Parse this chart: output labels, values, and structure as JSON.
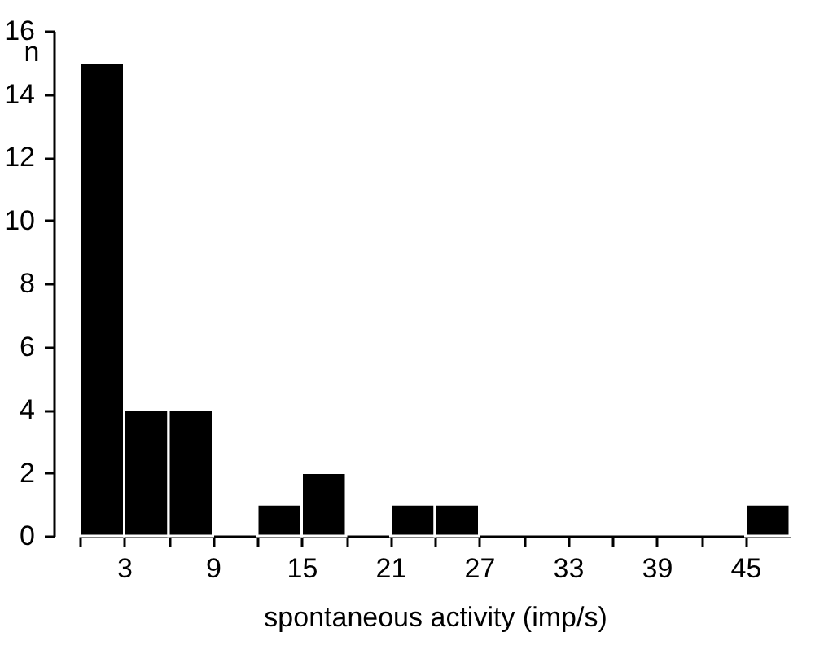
{
  "chart_data": {
    "type": "histogram",
    "xlabel": "spontaneous activity  (imp/s)",
    "ylabel": "n",
    "bins": [
      0,
      3,
      6,
      9,
      12,
      15,
      18,
      21,
      24,
      27,
      30,
      33,
      36,
      39,
      42,
      45,
      48
    ],
    "values": [
      15,
      4,
      4,
      0,
      1,
      2,
      0,
      1,
      1,
      0,
      0,
      0,
      0,
      0,
      0,
      1
    ],
    "color": "#000000",
    "xlim": [
      0,
      48
    ],
    "xticks": [
      {
        "value": 0,
        "label": null
      },
      3,
      {
        "value": 6,
        "label": null
      },
      9,
      {
        "value": 12,
        "label": null
      },
      15,
      {
        "value": 18,
        "label": null
      },
      21,
      {
        "value": 24,
        "label": null
      },
      27,
      {
        "value": 30,
        "label": null
      },
      33,
      {
        "value": 36,
        "label": null
      },
      39,
      {
        "value": 42,
        "label": null
      },
      45
    ],
    "ylim": [
      0,
      16
    ],
    "yticks": [
      0,
      2,
      4,
      6,
      8,
      10,
      12,
      14,
      16
    ]
  }
}
